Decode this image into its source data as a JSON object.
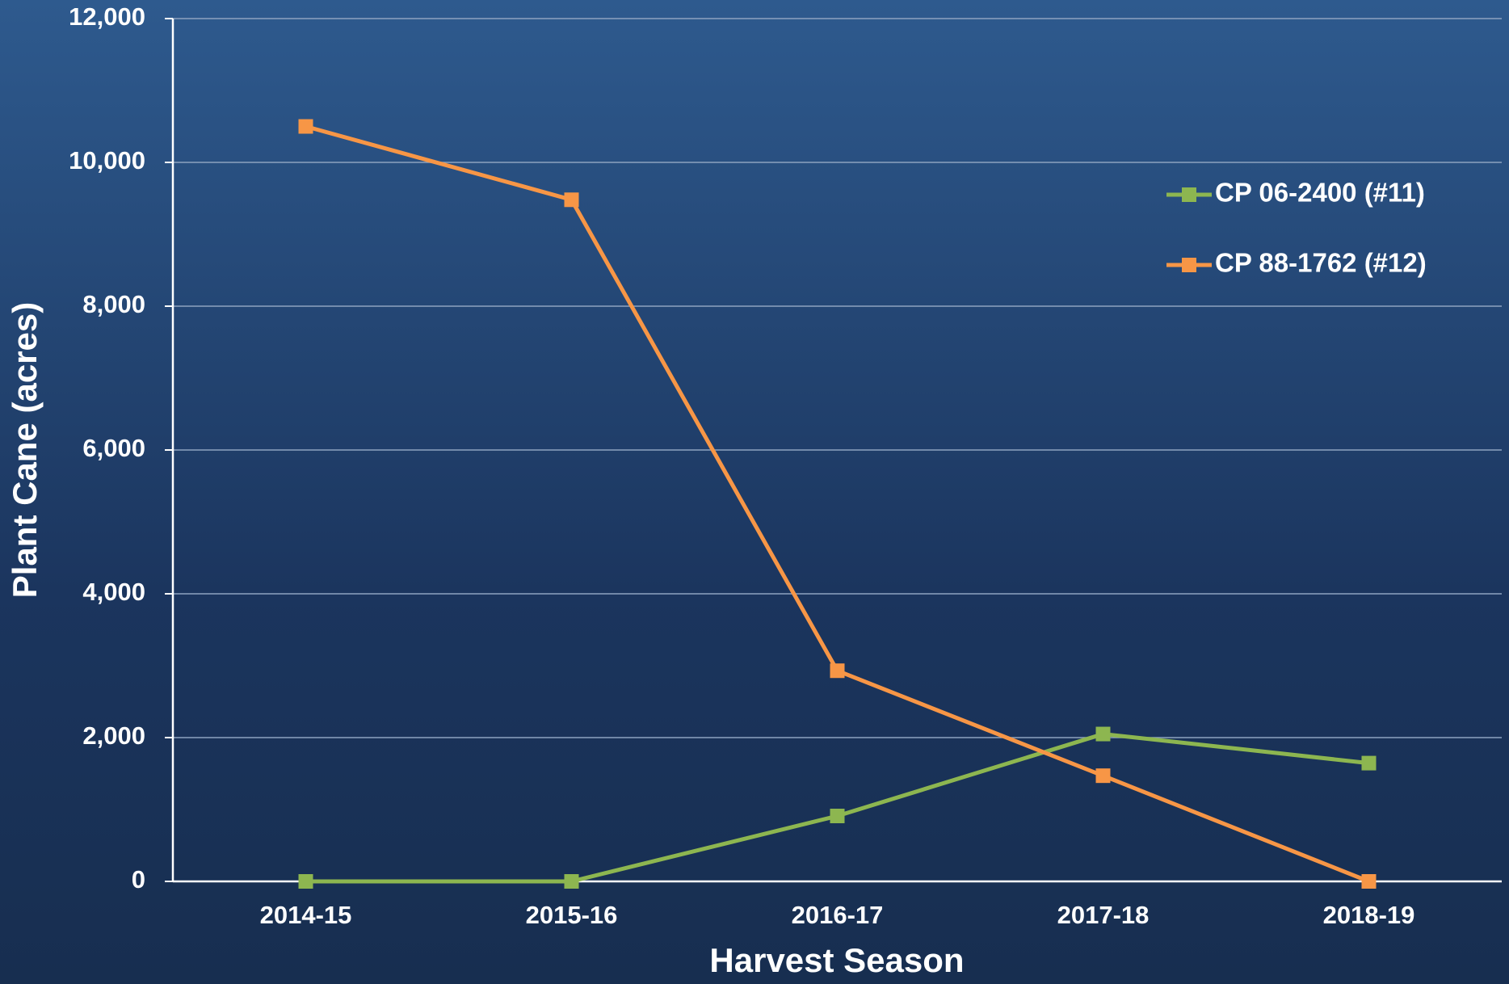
{
  "chart_data": {
    "type": "line",
    "xlabel": "Harvest Season",
    "ylabel": "Plant Cane (acres)",
    "categories": [
      "2014-15",
      "2015-16",
      "2016-17",
      "2017-18",
      "2018-19"
    ],
    "series": [
      {
        "name": "CP 06-2400 (#11)",
        "color": "#8db650",
        "values": [
          0,
          0,
          910,
          2050,
          1645
        ]
      },
      {
        "name": "CP 88-1762 (#12)",
        "color": "#f79646",
        "values": [
          10500,
          9480,
          2930,
          1470,
          0
        ]
      }
    ],
    "ylim": [
      0,
      12000
    ],
    "yticks": [
      0,
      {
        "value": 2000,
        "label": "2,000"
      },
      {
        "value": 4000,
        "label": "4,000"
      },
      {
        "value": 6000,
        "label": "6,000"
      },
      {
        "value": 8000,
        "label": "8,000"
      },
      {
        "value": 10000,
        "label": "10,000"
      },
      {
        "value": 12000,
        "label": "12,000"
      }
    ],
    "grid": true,
    "legend": "upper right",
    "marker": "square"
  }
}
